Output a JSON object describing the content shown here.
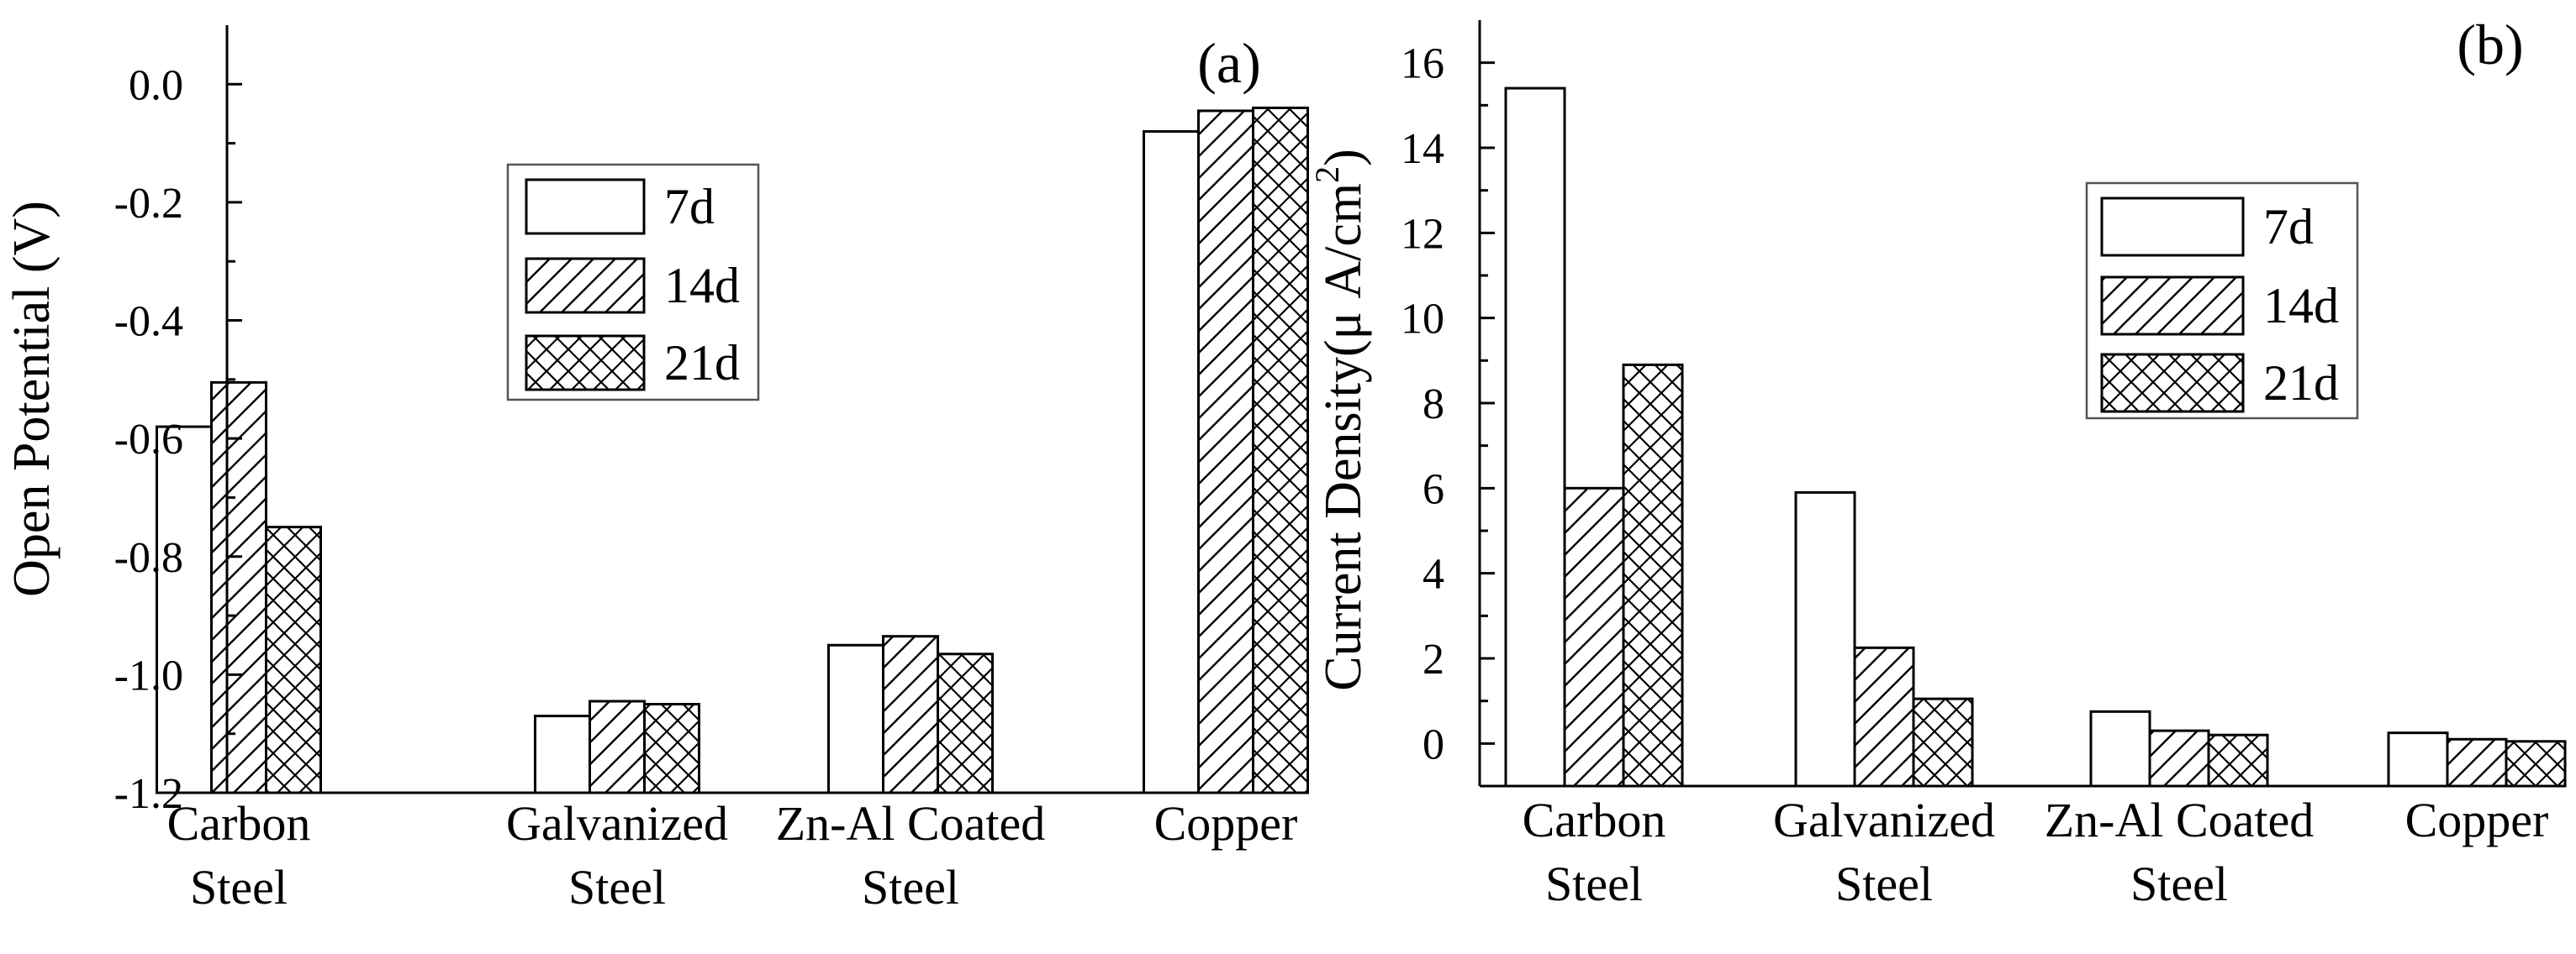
{
  "chart_data": [
    {
      "type": "bar",
      "panel_label": "(a)",
      "categories": [
        [
          "Carbon",
          "Steel"
        ],
        [
          "Galvanized",
          "Steel"
        ],
        [
          "Zn-Al  Coated",
          "Steel"
        ],
        [
          "Copper"
        ]
      ],
      "series": [
        {
          "name": "7d",
          "pattern": "empty",
          "values": [
            -0.58,
            -1.07,
            -0.95,
            -0.08
          ]
        },
        {
          "name": "14d",
          "pattern": "hatch",
          "values": [
            -0.505,
            -1.045,
            -0.935,
            -0.045
          ]
        },
        {
          "name": "21d",
          "pattern": "crosshatch",
          "values": [
            -0.75,
            -1.05,
            -0.965,
            -0.04
          ]
        }
      ],
      "ylabel": "Open Potential (V)",
      "xlabel": "",
      "ylim": [
        -1.2,
        0.1
      ],
      "yticks": [
        "0.0",
        "-0.2",
        "-0.4",
        "-0.6",
        "-0.8",
        "-1.0",
        "-1.2"
      ],
      "ytick_values": [
        0.0,
        -0.2,
        -0.4,
        -0.6,
        -0.8,
        -1.0,
        -1.2
      ],
      "bar_base": -1.2,
      "legend": "upper-center",
      "grid": false
    },
    {
      "type": "bar",
      "panel_label": "(b)",
      "categories": [
        [
          "Carbon",
          "Steel"
        ],
        [
          "Galvanized",
          "Steel"
        ],
        [
          "Zn-Al  Coated",
          "Steel"
        ],
        [
          "Copper"
        ]
      ],
      "series": [
        {
          "name": "7d",
          "pattern": "empty",
          "values": [
            15.4,
            5.9,
            0.75,
            0.25
          ]
        },
        {
          "name": "14d",
          "pattern": "hatch",
          "values": [
            6.0,
            2.25,
            0.3,
            0.1
          ]
        },
        {
          "name": "21d",
          "pattern": "crosshatch",
          "values": [
            8.9,
            1.05,
            0.2,
            0.05
          ]
        }
      ],
      "ylabel_main": "Current Density(μ A/cm",
      "ylabel_sup": "2",
      "ylabel_end": ")",
      "xlabel": "",
      "ylim": [
        -1,
        17
      ],
      "yticks": [
        "0",
        "2",
        "4",
        "6",
        "8",
        "10",
        "12",
        "14",
        "16"
      ],
      "ytick_values": [
        0,
        2,
        4,
        6,
        8,
        10,
        12,
        14,
        16
      ],
      "bar_base": -1,
      "legend": "upper-right",
      "grid": false
    }
  ]
}
